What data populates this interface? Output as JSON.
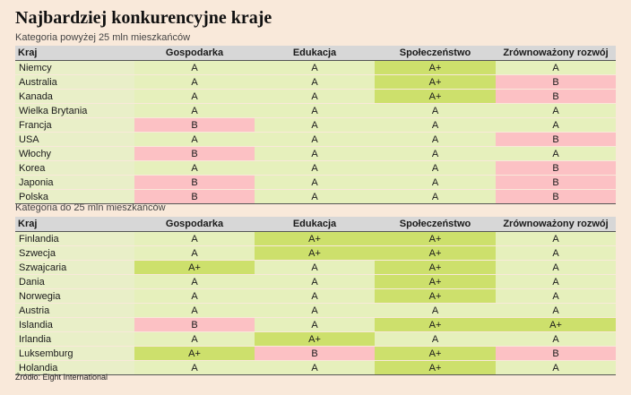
{
  "title": "Najbardziej konkurencyjne kraje",
  "colors": {
    "A": "#e6f0bc",
    "A+": "#cde06c",
    "B": "#fcc1c4",
    "header": "#d7d7d7",
    "background": "#f9e9da"
  },
  "headers": [
    "Kraj",
    "Gospodarka",
    "Edukacja",
    "Społeczeństwo",
    "Zrównoważony rozwój"
  ],
  "group1": {
    "label": "Kategoria powyżej 25 mln mieszkańców",
    "rows": [
      {
        "country": "Niemcy",
        "values": [
          "A",
          "A",
          "A+",
          "A"
        ]
      },
      {
        "country": "Australia",
        "values": [
          "A",
          "A",
          "A+",
          "B"
        ]
      },
      {
        "country": "Kanada",
        "values": [
          "A",
          "A",
          "A+",
          "B"
        ]
      },
      {
        "country": "Wielka Brytania",
        "values": [
          "A",
          "A",
          "A",
          "A"
        ]
      },
      {
        "country": "Francja",
        "values": [
          "B",
          "A",
          "A",
          "A"
        ]
      },
      {
        "country": "USA",
        "values": [
          "A",
          "A",
          "A",
          "B"
        ]
      },
      {
        "country": "Włochy",
        "values": [
          "B",
          "A",
          "A",
          "A"
        ]
      },
      {
        "country": "Korea",
        "values": [
          "A",
          "A",
          "A",
          "B"
        ]
      },
      {
        "country": "Japonia",
        "values": [
          "B",
          "A",
          "A",
          "B"
        ]
      },
      {
        "country": "Polska",
        "values": [
          "B",
          "A",
          "A",
          "B"
        ]
      }
    ]
  },
  "group2": {
    "label": "Kategoria do 25 mln mieszkańców",
    "rows": [
      {
        "country": "Finlandia",
        "values": [
          "A",
          "A+",
          "A+",
          "A"
        ]
      },
      {
        "country": "Szwecja",
        "values": [
          "A",
          "A+",
          "A+",
          "A"
        ]
      },
      {
        "country": "Szwajcaria",
        "values": [
          "A+",
          "A",
          "A+",
          "A"
        ]
      },
      {
        "country": "Dania",
        "values": [
          "A",
          "A",
          "A+",
          "A"
        ]
      },
      {
        "country": "Norwegia",
        "values": [
          "A",
          "A",
          "A+",
          "A"
        ]
      },
      {
        "country": "Austria",
        "values": [
          "A",
          "A",
          "A",
          "A"
        ]
      },
      {
        "country": "Islandia",
        "values": [
          "B",
          "A",
          "A+",
          "A+"
        ]
      },
      {
        "country": "Irlandia",
        "values": [
          "A",
          "A+",
          "A",
          "A"
        ]
      },
      {
        "country": "Luksemburg",
        "values": [
          "A+",
          "B",
          "A+",
          "B"
        ]
      },
      {
        "country": "Holandia",
        "values": [
          "A",
          "A",
          "A+",
          "A"
        ]
      }
    ]
  },
  "source": "Źródło: Eight International"
}
